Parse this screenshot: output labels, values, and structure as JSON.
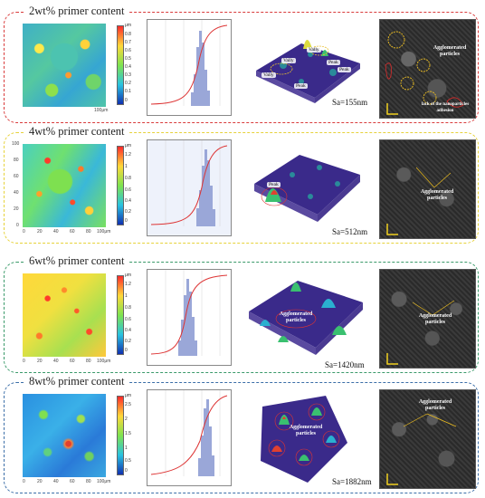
{
  "panels": [
    {
      "title": "2wt% primer content",
      "color": "#d93b3b",
      "sa": "Sa=155nm",
      "cb_ticks": [
        "μm",
        "0.8",
        "0.7",
        "0.6",
        "0.5",
        "0.4",
        "0.3",
        "0.2",
        "0.1",
        "0"
      ],
      "sem_labels": [
        "Agglomerated particles",
        "lack of the nanoparticles adhesion"
      ],
      "surf_labels": [
        "Vally",
        "Peak",
        "Vally",
        "Peak",
        "Peak",
        "Vally"
      ],
      "xlabel_end": "100μm"
    },
    {
      "title": "4wt% primer content",
      "color": "#e6d23a",
      "sa": "Sa=512nm",
      "cb_ticks": [
        "μm",
        "1.2",
        "1",
        "0.8",
        "0.6",
        "0.4",
        "0.2",
        "0"
      ],
      "sem_labels": [
        "Agglomerated particles"
      ],
      "surf_labels": [
        "Peak"
      ],
      "xlabel_end": "100μm"
    },
    {
      "title": "6wt% primer content",
      "color": "#3a9a6a",
      "sa": "Sa=1420nm",
      "cb_ticks": [
        "μm",
        "1.2",
        "1",
        "0.8",
        "0.6",
        "0.4",
        "0.2",
        "0"
      ],
      "sem_labels": [
        "Agglomerated particles"
      ],
      "surf_labels": [
        "Agglomerated particles"
      ],
      "xlabel_end": "100μm"
    },
    {
      "title": "8wt% primer content",
      "color": "#3b6ea8",
      "sa": "Sa=1882nm",
      "cb_ticks": [
        "μm",
        "2.5",
        "2",
        "1.5",
        "1",
        "0.5",
        "0"
      ],
      "sem_labels": [
        "Agglomerated particles"
      ],
      "surf_labels": [
        "Agglomerated particles"
      ],
      "xlabel_end": "100μm"
    }
  ],
  "x_ticks": [
    "0",
    "20",
    "40",
    "60",
    "80"
  ],
  "y_ticks": [
    "100",
    "80",
    "60",
    "40",
    "20",
    "0"
  ]
}
